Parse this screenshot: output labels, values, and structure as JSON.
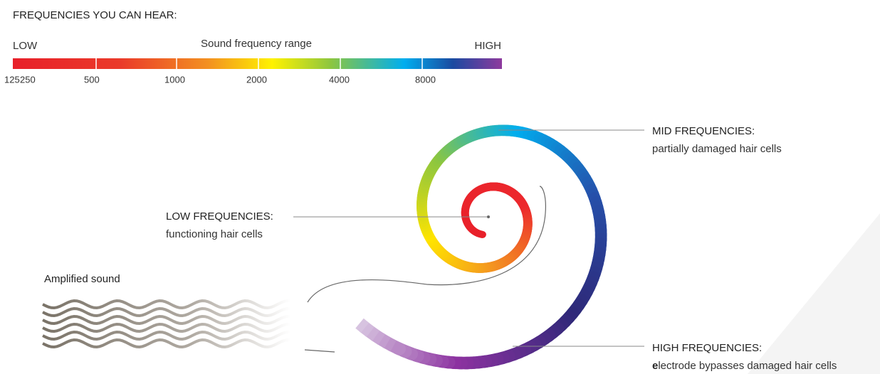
{
  "header": {
    "title": "FREQUENCIES YOU CAN HEAR:"
  },
  "scale": {
    "low_label": "LOW",
    "title": "Sound frequency range",
    "high_label": "HIGH",
    "ticks": [
      "125",
      "250",
      "500",
      "1000",
      "2000",
      "4000",
      "8000"
    ]
  },
  "labels": {
    "mid": {
      "heading": "MID FREQUENCIES:",
      "description": "partially damaged hair cells"
    },
    "low": {
      "heading": "LOW FREQUENCIES:",
      "description": "functioning hair cells"
    },
    "high": {
      "heading": "HIGH FREQUENCIES:",
      "description_initial": "e",
      "description": "lectrode bypasses damaged hair cells"
    },
    "sound": "Amplified sound"
  }
}
